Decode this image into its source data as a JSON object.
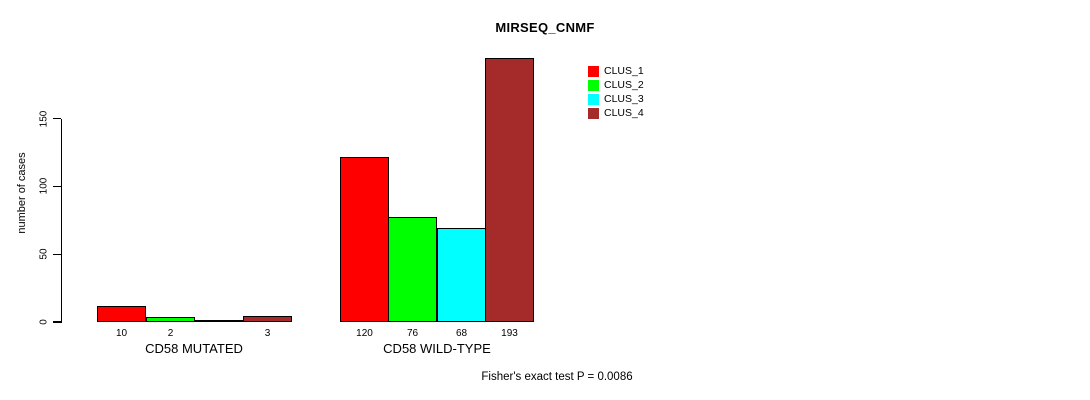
{
  "figure": {
    "title": "MIRSEQ_CNMF",
    "footer": "Fisher's exact test P = 0.0086"
  },
  "chart_data": {
    "type": "bar",
    "title": "MIRSEQ_CNMF",
    "ylabel": "number of cases",
    "xlabel": "",
    "categories": [
      "CD58 MUTATED",
      "CD58 WILD-TYPE"
    ],
    "series": [
      {
        "name": "CLUS_1",
        "color": "#ff0000",
        "values": [
          10,
          120
        ]
      },
      {
        "name": "CLUS_2",
        "color": "#00ff00",
        "values": [
          2,
          76
        ]
      },
      {
        "name": "CLUS_3",
        "color": "#00ffff",
        "values": [
          0,
          68
        ]
      },
      {
        "name": "CLUS_4",
        "color": "#a52a2a",
        "values": [
          3,
          193
        ]
      }
    ],
    "bar_value_labels": [
      [
        "10",
        "2",
        "",
        "3"
      ],
      [
        "120",
        "76",
        "68",
        "193"
      ]
    ],
    "yticks": [
      0,
      50,
      100,
      150
    ],
    "ylim": [
      0,
      150
    ],
    "grid": false,
    "legend_position": "top-right",
    "annotation": "Fisher's exact test P = 0.0086"
  }
}
